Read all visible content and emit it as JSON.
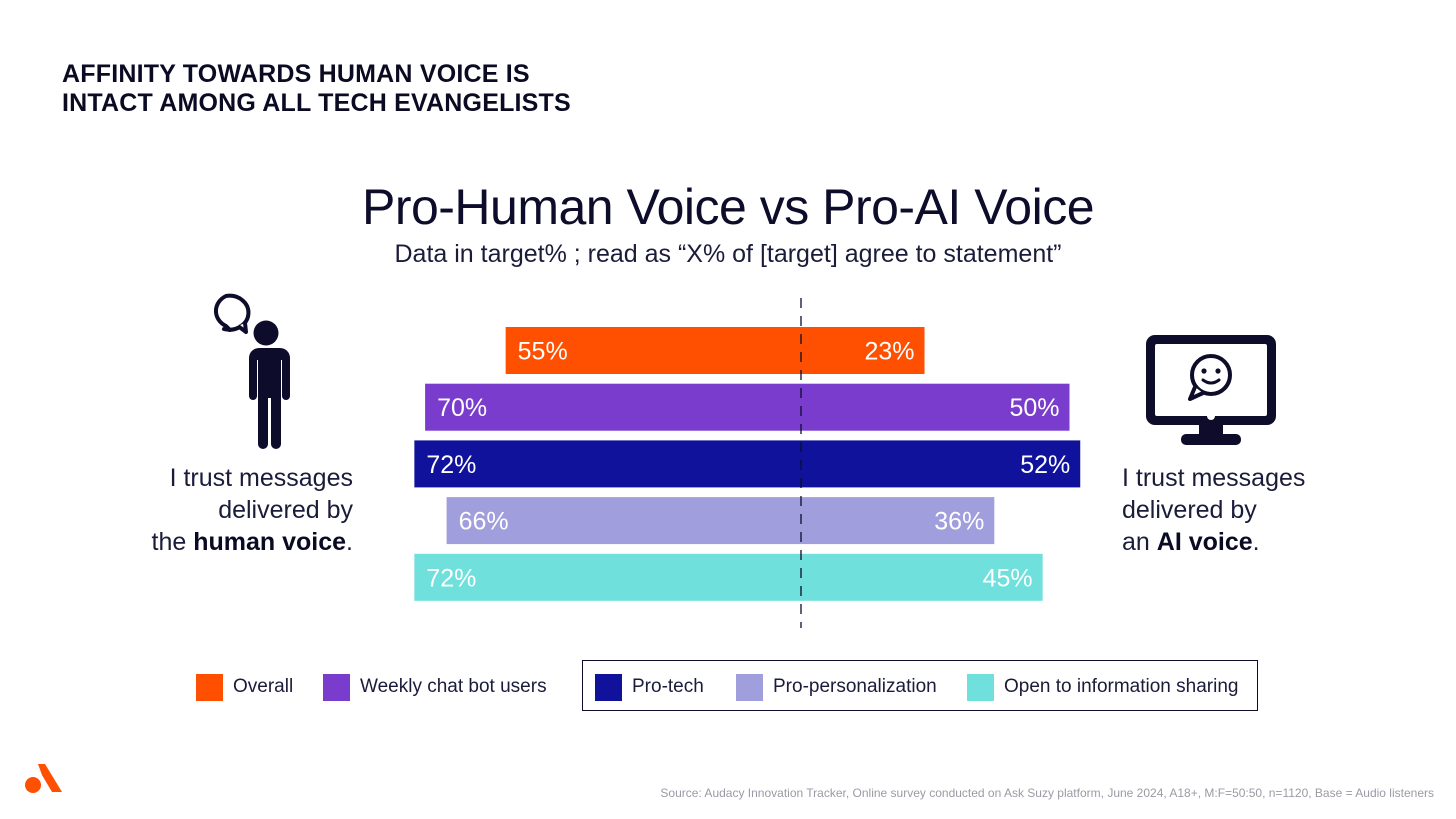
{
  "headline": {
    "line1": "AFFINITY TOWARDS HUMAN VOICE IS",
    "line2": "INTACT AMONG ALL TECH EVANGELISTS"
  },
  "left_side": {
    "line1": "I trust messages",
    "line2": "delivered by",
    "line3_prefix": "the ",
    "line3_bold": "human voice",
    "line3_suffix": ".",
    "icon": "person-speech-bubble-icon"
  },
  "right_side": {
    "line1": "I trust messages",
    "line2": "delivered by",
    "line3_prefix": "an ",
    "line3_bold": "AI voice",
    "line3_suffix": ".",
    "icon": "monitor-chat-icon"
  },
  "chart_data": {
    "type": "bar",
    "orientation": "horizontal-diverging",
    "title": "Pro-Human Voice vs Pro-AI Voice",
    "subtitle": "Data in target% ; read as “X% of [target] agree to statement”",
    "axis_max": 80,
    "unit": "%",
    "left_statement": "I trust messages delivered by the human voice.",
    "right_statement": "I trust messages delivered by an AI voice.",
    "series": [
      {
        "name": "Overall",
        "color": "#ff4f00",
        "human": 55,
        "ai": 23
      },
      {
        "name": "Weekly chat bot users",
        "color": "#7a3ccc",
        "human": 70,
        "ai": 50
      },
      {
        "name": "Pro-tech",
        "color": "#10129c",
        "human": 72,
        "ai": 52
      },
      {
        "name": "Pro-personalization",
        "color": "#a09edd",
        "human": 66,
        "ai": 36
      },
      {
        "name": "Open to information sharing",
        "color": "#6fe0dc",
        "human": 72,
        "ai": 45
      }
    ],
    "grouped_legend_entries": [
      "Pro-tech",
      "Pro-personalization",
      "Open to information sharing"
    ]
  },
  "colors": {
    "accent_orange": "#ff4f00",
    "ink": "#0d0d2b",
    "logo": "#ff4f00"
  },
  "source": "Source: Audacy Innovation Tracker, Online survey conducted on Ask Suzy platform, June 2024, A18+, M:F=50:50, n=1120, Base = Audio listeners"
}
